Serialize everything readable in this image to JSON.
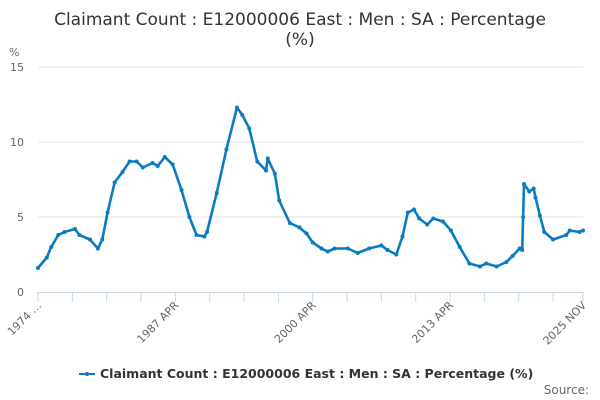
{
  "chart_data": {
    "type": "line",
    "title": "Claimant Count : E12000006 East : Men : SA : Percentage",
    "title_line2": "(%)",
    "ylabel": "%",
    "xlabel": "",
    "ylim": [
      0,
      15
    ],
    "yticks": [
      "0",
      "5",
      "10",
      "15"
    ],
    "xlim": [
      "1974-04",
      "2025-11"
    ],
    "xtick_labels": [
      "1974 …",
      "1987 APR",
      "2000 APR",
      "2013 APR",
      "2025 NOV"
    ],
    "grid": "horizontal",
    "legend": "bottom",
    "color": "#0a7bc1",
    "series": [
      {
        "name": "Claimant Count : E12000006 East : Men : SA : Percentage (%)",
        "points": [
          [
            "1974-04",
            1.6
          ],
          [
            "1975-02",
            2.3
          ],
          [
            "1975-07",
            3.0
          ],
          [
            "1976-03",
            3.8
          ],
          [
            "1976-10",
            4.0
          ],
          [
            "1977-10",
            4.2
          ],
          [
            "1978-03",
            3.8
          ],
          [
            "1979-03",
            3.5
          ],
          [
            "1979-12",
            2.9
          ],
          [
            "1980-05",
            3.5
          ],
          [
            "1980-11",
            5.3
          ],
          [
            "1981-07",
            7.3
          ],
          [
            "1982-04",
            8.0
          ],
          [
            "1982-12",
            8.7
          ],
          [
            "1983-08",
            8.7
          ],
          [
            "1984-03",
            8.3
          ],
          [
            "1985-02",
            8.6
          ],
          [
            "1985-08",
            8.4
          ],
          [
            "1986-04",
            9.0
          ],
          [
            "1987-01",
            8.5
          ],
          [
            "1987-11",
            6.8
          ],
          [
            "1988-08",
            5.0
          ],
          [
            "1989-04",
            3.8
          ],
          [
            "1990-01",
            3.7
          ],
          [
            "1990-04",
            4.0
          ],
          [
            "1991-03",
            6.6
          ],
          [
            "1992-02",
            9.5
          ],
          [
            "1993-02",
            12.3
          ],
          [
            "1993-08",
            11.8
          ],
          [
            "1994-04",
            10.9
          ],
          [
            "1995-01",
            8.7
          ],
          [
            "1995-11",
            8.1
          ],
          [
            "1996-01",
            8.9
          ],
          [
            "1996-09",
            7.9
          ],
          [
            "1997-02",
            6.1
          ],
          [
            "1998-02",
            4.6
          ],
          [
            "1999-01",
            4.3
          ],
          [
            "1999-09",
            3.9
          ],
          [
            "2000-04",
            3.3
          ],
          [
            "2001-02",
            2.9
          ],
          [
            "2001-09",
            2.7
          ],
          [
            "2002-05",
            2.9
          ],
          [
            "2003-08",
            2.9
          ],
          [
            "2004-07",
            2.6
          ],
          [
            "2005-08",
            2.9
          ],
          [
            "2006-10",
            3.1
          ],
          [
            "2007-05",
            2.8
          ],
          [
            "2008-03",
            2.5
          ],
          [
            "2008-10",
            3.7
          ],
          [
            "2009-04",
            5.3
          ],
          [
            "2009-11",
            5.5
          ],
          [
            "2010-05",
            4.9
          ],
          [
            "2011-02",
            4.5
          ],
          [
            "2011-09",
            4.9
          ],
          [
            "2012-08",
            4.7
          ],
          [
            "2013-05",
            4.1
          ],
          [
            "2014-03",
            3.0
          ],
          [
            "2015-02",
            1.9
          ],
          [
            "2016-02",
            1.7
          ],
          [
            "2016-09",
            1.9
          ],
          [
            "2017-09",
            1.7
          ],
          [
            "2018-08",
            2.0
          ],
          [
            "2019-03",
            2.4
          ],
          [
            "2019-11",
            2.9
          ],
          [
            "2020-02",
            2.8
          ],
          [
            "2020-03",
            5.0
          ],
          [
            "2020-04",
            7.2
          ],
          [
            "2020-10",
            6.7
          ],
          [
            "2021-03",
            6.9
          ],
          [
            "2021-05",
            6.3
          ],
          [
            "2021-10",
            5.1
          ],
          [
            "2022-03",
            4.0
          ],
          [
            "2023-01",
            3.5
          ],
          [
            "2024-04",
            3.8
          ],
          [
            "2024-08",
            4.1
          ],
          [
            "2025-07",
            4.0
          ],
          [
            "2025-11",
            4.1
          ]
        ]
      }
    ],
    "source_label": "Source:"
  }
}
